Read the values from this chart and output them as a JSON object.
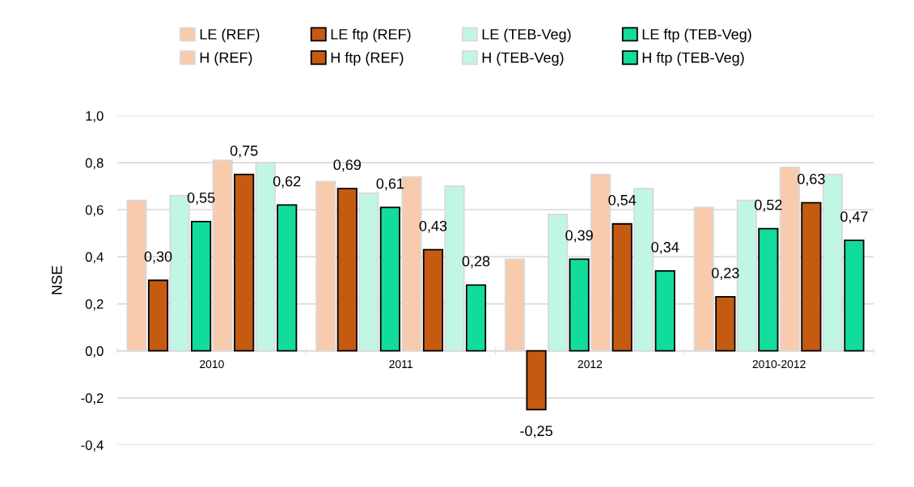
{
  "chart_data": {
    "type": "bar",
    "ylabel": "NSE",
    "categories": [
      "2010",
      "2011",
      "2012",
      "2010-2012"
    ],
    "series": [
      {
        "name": "LE (REF)",
        "color": "#f8cbad",
        "values": [
          0.64,
          0.72,
          0.39,
          0.61
        ]
      },
      {
        "name": "LE ftp (REF)",
        "color": "#c55a11",
        "values": [
          0.3,
          0.69,
          -0.25,
          0.23
        ],
        "value_labels": [
          "0,30",
          "0,69",
          "-0,25",
          "0,23"
        ]
      },
      {
        "name": "LE (TEB-Veg)",
        "color": "#c1f6e4",
        "values": [
          0.66,
          0.67,
          0.58,
          0.64
        ]
      },
      {
        "name": "LE ftp (TEB-Veg)",
        "color": "#12dc9c",
        "values": [
          0.55,
          0.61,
          0.39,
          0.52
        ],
        "value_labels": [
          "0,55",
          "0,61",
          "0,39",
          "0,52"
        ]
      },
      {
        "name": "H (REF)",
        "color": "#f8cbad",
        "values": [
          0.81,
          0.74,
          0.75,
          0.78
        ]
      },
      {
        "name": "H ftp (REF)",
        "color": "#c55a11",
        "values": [
          0.75,
          0.43,
          0.54,
          0.63
        ],
        "value_labels": [
          "0,75",
          "0,43",
          "0,54",
          "0,63"
        ]
      },
      {
        "name": "H (TEB-Veg)",
        "color": "#c1f6e4",
        "values": [
          0.8,
          0.7,
          0.69,
          0.75
        ]
      },
      {
        "name": "H ftp (TEB-Veg)",
        "color": "#12dc9c",
        "values": [
          0.62,
          0.28,
          0.34,
          0.47
        ],
        "value_labels": [
          "0,62",
          "0,28",
          "0,34",
          "0,47"
        ]
      }
    ],
    "ylim": [
      -0.4,
      1.0
    ],
    "yticks": [
      {
        "value": -0.4,
        "label": "-0,4"
      },
      {
        "value": -0.2,
        "label": "-0,2"
      },
      {
        "value": 0.0,
        "label": "0,0"
      },
      {
        "value": 0.2,
        "label": "0,2"
      },
      {
        "value": 0.4,
        "label": "0,4"
      },
      {
        "value": 0.6,
        "label": "0,6"
      },
      {
        "value": 0.8,
        "label": "0,8"
      },
      {
        "value": 1.0,
        "label": "1,0"
      }
    ],
    "grid": "y",
    "legend": "top"
  }
}
